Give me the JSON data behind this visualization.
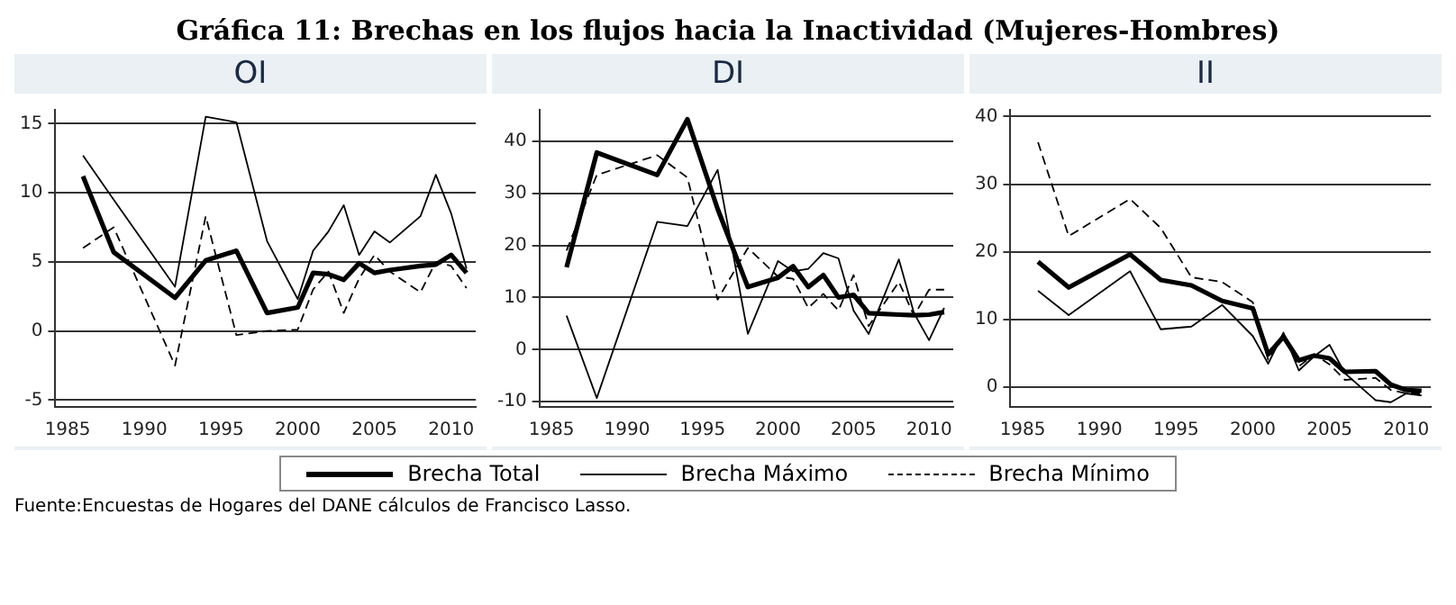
{
  "chart_data": [
    {
      "type": "line",
      "title": "OI",
      "x": [
        1986,
        1988,
        1992,
        1994,
        1996,
        1998,
        2000,
        2001,
        2002,
        2003,
        2004,
        2005,
        2006,
        2008,
        2009,
        2010,
        2011
      ],
      "annotations": [
        "Gráfica 11: Brechas en los flujos hacia la Inactividad (Mujeres-Hombres)",
        "Fuente:Encuestas de Hogares del DANE cálculos de Francisco Lasso."
      ],
      "series": [
        {
          "name": "Brecha Total",
          "color": "#000000",
          "line_style": "solid",
          "values": [
            11.2,
            5.7,
            2.4,
            5.1,
            5.8,
            1.3,
            1.7,
            4.2,
            4.1,
            3.7,
            4.9,
            4.2,
            4.4,
            4.7,
            4.8,
            5.5,
            4.2
          ]
        },
        {
          "name": "Brecha Máximo",
          "color": "#000000",
          "line_style": "solid",
          "values": [
            12.7,
            9.5,
            3.2,
            15.5,
            15.1,
            6.5,
            2.3,
            5.8,
            7.2,
            9.1,
            5.5,
            7.2,
            6.4,
            8.3,
            11.3,
            8.5,
            4.5
          ]
        },
        {
          "name": "Brecha Mínimo",
          "color": "#000000",
          "line_style": "dashed",
          "values": [
            6.0,
            7.5,
            -2.5,
            8.3,
            -0.3,
            0.0,
            0.1,
            3.0,
            4.3,
            1.3,
            3.8,
            5.5,
            4.3,
            2.8,
            5.0,
            4.7,
            3.1
          ]
        }
      ],
      "xlim": [
        1984.2,
        2011.6
      ],
      "xticks": [
        1985,
        1990,
        1995,
        2000,
        2005,
        2010
      ],
      "ylim": [
        -5.5,
        16
      ],
      "yticks": [
        -5,
        0,
        5,
        10,
        15
      ],
      "grid": "y",
      "legend": "bottom"
    },
    {
      "type": "line",
      "title": "DI",
      "x": [
        1986,
        1988,
        1992,
        1994,
        1996,
        1998,
        2000,
        2001,
        2002,
        2003,
        2004,
        2005,
        2006,
        2008,
        2009,
        2010,
        2011
      ],
      "series": [
        {
          "color": "#000000",
          "line_style": "solid",
          "values": [
            15.8,
            37.8,
            33.5,
            44.2,
            27,
            12,
            13.8,
            16,
            12,
            14.3,
            10,
            10.5,
            7,
            6.7,
            6.6,
            6.7,
            7.2
          ]
        },
        {
          "color": "#000000",
          "line_style": "solid",
          "values": [
            6.5,
            -9.3,
            24.5,
            23.7,
            34.5,
            3,
            17,
            15,
            15.5,
            18.5,
            17.5,
            7.5,
            3,
            17.3,
            7,
            1.8,
            8
          ]
        },
        {
          "color": "#000000",
          "line_style": "dashed",
          "values": [
            19,
            33.5,
            37.3,
            33,
            9.6,
            19.5,
            14,
            13.6,
            8,
            10.7,
            7.5,
            14.3,
            4.5,
            13,
            6.5,
            11.5,
            11.5
          ]
        }
      ],
      "xlim": [
        1984.2,
        2011.6
      ],
      "xticks": [
        1985,
        1990,
        1995,
        2000,
        2005,
        2010
      ],
      "ylim": [
        -11,
        46
      ],
      "yticks": [
        -10,
        0,
        10,
        20,
        30,
        40
      ],
      "grid": "y"
    },
    {
      "type": "line",
      "title": "II",
      "x": [
        1986,
        1988,
        1992,
        1994,
        1996,
        1998,
        2000,
        2001,
        2002,
        2003,
        2004,
        2005,
        2006,
        2008,
        2009,
        2010,
        2011
      ],
      "series": [
        {
          "color": "#000000",
          "line_style": "solid",
          "values": [
            18.5,
            14.7,
            19.6,
            15.8,
            15,
            12.7,
            11.6,
            4.8,
            7.4,
            3.9,
            4.6,
            4.2,
            2.2,
            2.3,
            0.3,
            -0.5,
            -0.6
          ]
        },
        {
          "color": "#000000",
          "line_style": "solid",
          "values": [
            14.2,
            10.6,
            17.1,
            8.5,
            8.9,
            12.1,
            7.5,
            3.4,
            8,
            2.4,
            4.5,
            6.2,
            2,
            -2,
            -2.3,
            -1,
            -1.3
          ]
        },
        {
          "color": "#000000",
          "line_style": "dashed",
          "values": [
            36.2,
            22.3,
            27.8,
            23.5,
            16.2,
            15.5,
            12.5,
            4,
            7.5,
            3,
            4.8,
            3.3,
            1,
            1.3,
            -0.5,
            -1,
            -1
          ]
        }
      ],
      "xlim": [
        1984.2,
        2011.6
      ],
      "xticks": [
        1985,
        1990,
        1995,
        2000,
        2005,
        2010
      ],
      "ylim": [
        -3,
        41
      ],
      "yticks": [
        0,
        10,
        20,
        30,
        40
      ],
      "grid": "y"
    }
  ]
}
